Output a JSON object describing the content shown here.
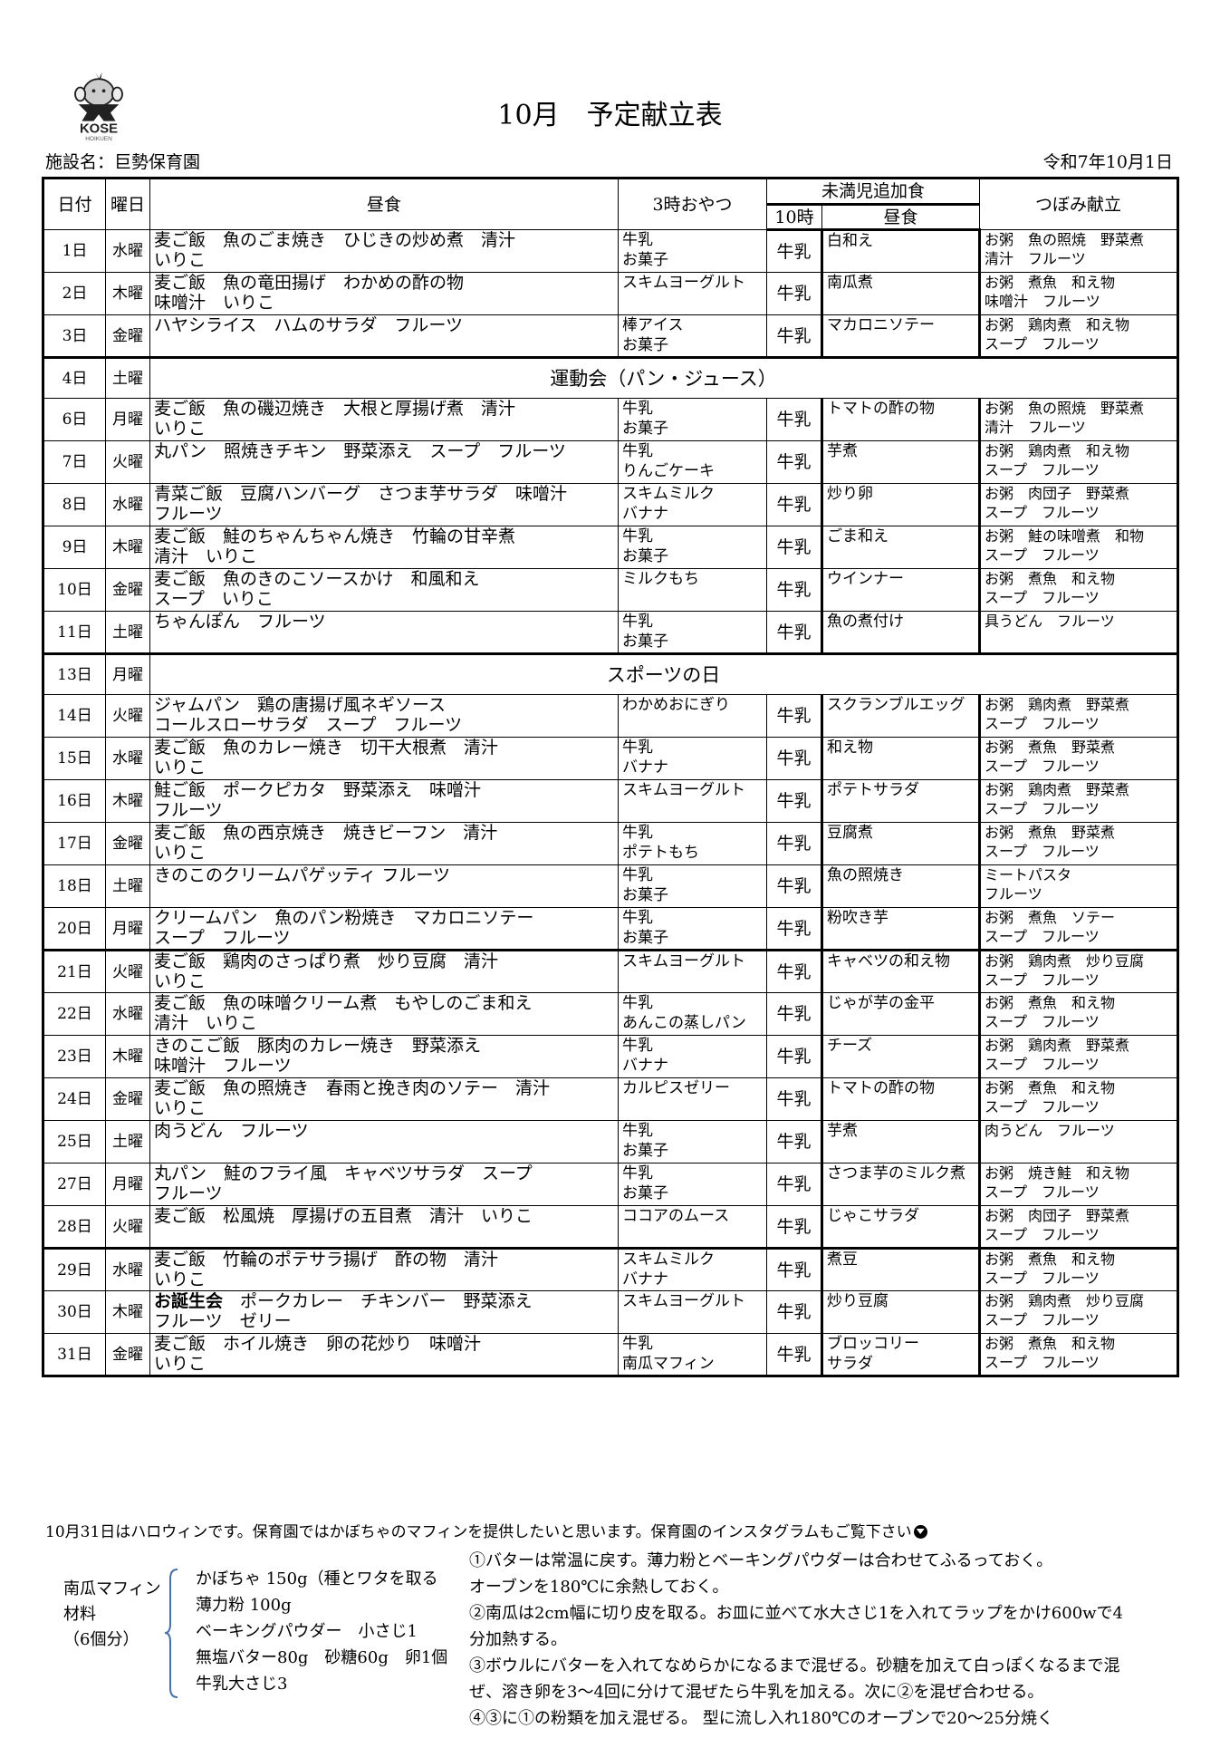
{
  "logo": {
    "text": "KOSE",
    "subtext": "HOIKUEN"
  },
  "title": "10月　予定献立表",
  "facility": "施設名：巨勢保育園",
  "issued_date": "令和7年10月1日",
  "headers": {
    "date": "日付",
    "weekday": "曜日",
    "lunch": "昼食",
    "snack": "3時おやつ",
    "extra": "未満児追加食",
    "ten": "10時",
    "extra_lunch": "昼食",
    "tsubomi": "つぼみ献立"
  },
  "rows": [
    {
      "day": "1日",
      "wd": "水曜",
      "lunch": "麦ご飯　魚のごま焼き　ひじきの炒め煮　清汁\nいりこ",
      "snack": "牛乳\nお菓子",
      "ten": "牛乳",
      "add": "白和え",
      "tsu": "お粥　魚の照焼　野菜煮\n清汁　フルーツ"
    },
    {
      "day": "2日",
      "wd": "木曜",
      "lunch": "麦ご飯　魚の竜田揚げ　わかめの酢の物\n味噌汁　いりこ",
      "snack": "スキムヨーグルト",
      "ten": "牛乳",
      "add": "南瓜煮",
      "tsu": "お粥　煮魚　和え物\n味噌汁　フルーツ"
    },
    {
      "day": "3日",
      "wd": "金曜",
      "lunch": "ハヤシライス　ハムのサラダ　フルーツ",
      "snack": "棒アイス\nお菓子",
      "ten": "牛乳",
      "add": "マカロニソテー",
      "tsu": "お粥　鶏肉煮　和え物\nスープ　フルーツ"
    },
    {
      "day": "4日",
      "wd": "土曜",
      "event": "運動会（パン・ジュース）"
    },
    {
      "day": "6日",
      "wd": "月曜",
      "lunch": "麦ご飯　魚の磯辺焼き　大根と厚揚げ煮　清汁\nいりこ",
      "snack": "牛乳\nお菓子",
      "ten": "牛乳",
      "add": "トマトの酢の物",
      "tsu": "お粥　魚の照焼　野菜煮\n清汁　フルーツ"
    },
    {
      "day": "7日",
      "wd": "火曜",
      "lunch": "丸パン　照焼きチキン　野菜添え　スープ　フルーツ",
      "snack": "牛乳\nりんごケーキ",
      "ten": "牛乳",
      "add": "芋煮",
      "tsu": "お粥　鶏肉煮　和え物\nスープ　フルーツ"
    },
    {
      "day": "8日",
      "wd": "水曜",
      "lunch": "青菜ご飯　豆腐ハンバーグ　さつま芋サラダ　味噌汁\nフルーツ",
      "snack": "スキムミルク\nバナナ",
      "ten": "牛乳",
      "add": "炒り卵",
      "tsu": "お粥　肉団子　野菜煮\nスープ　フルーツ"
    },
    {
      "day": "9日",
      "wd": "木曜",
      "lunch": "麦ご飯　鮭のちゃんちゃん焼き　竹輪の甘辛煮\n清汁　いりこ",
      "snack": "牛乳\nお菓子",
      "ten": "牛乳",
      "add": "ごま和え",
      "tsu": "お粥　鮭の味噌煮　和物\nスープ　フルーツ"
    },
    {
      "day": "10日",
      "wd": "金曜",
      "lunch": "麦ご飯　魚のきのこソースかけ　和風和え\nスープ　いりこ",
      "snack": "ミルクもち",
      "ten": "牛乳",
      "add": "ウインナー",
      "tsu": "お粥　煮魚　和え物\nスープ　フルーツ"
    },
    {
      "day": "11日",
      "wd": "土曜",
      "lunch": "ちゃんぽん　フルーツ",
      "snack": "牛乳\nお菓子",
      "ten": "牛乳",
      "add": "魚の煮付け",
      "tsu": "具うどん　フルーツ"
    },
    {
      "day": "13日",
      "wd": "月曜",
      "event": "スポーツの日"
    },
    {
      "day": "14日",
      "wd": "火曜",
      "lunch": "ジャムパン　鶏の唐揚げ風ネギソース\nコールスローサラダ　スープ　フルーツ",
      "snack": "わかめおにぎり",
      "ten": "牛乳",
      "add": "スクランブルエッグ",
      "tsu": "お粥　鶏肉煮　野菜煮\nスープ　フルーツ"
    },
    {
      "day": "15日",
      "wd": "水曜",
      "lunch": "麦ご飯　魚のカレー焼き　切干大根煮　清汁\nいりこ",
      "snack": "牛乳\nバナナ",
      "ten": "牛乳",
      "add": "和え物",
      "tsu": "お粥　煮魚　野菜煮\nスープ　フルーツ"
    },
    {
      "day": "16日",
      "wd": "木曜",
      "lunch": "鮭ご飯　ポークピカタ　野菜添え　味噌汁\nフルーツ",
      "snack": "スキムヨーグルト",
      "ten": "牛乳",
      "add": "ポテトサラダ",
      "tsu": "お粥　鶏肉煮　野菜煮\nスープ　フルーツ"
    },
    {
      "day": "17日",
      "wd": "金曜",
      "lunch": "麦ご飯　魚の西京焼き　焼きビーフン　清汁\nいりこ",
      "snack": "牛乳\nポテトもち",
      "ten": "牛乳",
      "add": "豆腐煮",
      "tsu": "お粥　煮魚　野菜煮\nスープ　フルーツ"
    },
    {
      "day": "18日",
      "wd": "土曜",
      "lunch": "きのこのクリームパゲッティ フルーツ",
      "snack": "牛乳\nお菓子",
      "ten": "牛乳",
      "add": "魚の照焼き",
      "tsu": "ミートパスタ\nフルーツ"
    },
    {
      "day": "20日",
      "wd": "月曜",
      "lunch": "クリームパン　魚のパン粉焼き　マカロニソテー\nスープ　フルーツ",
      "snack": "牛乳\nお菓子",
      "ten": "牛乳",
      "add": "粉吹き芋",
      "tsu": "お粥　煮魚　ソテー\nスープ　フルーツ"
    },
    {
      "day": "21日",
      "wd": "火曜",
      "lunch": "麦ご飯　鶏肉のさっぱり煮　炒り豆腐　清汁\nいりこ",
      "snack": "スキムヨーグルト",
      "ten": "牛乳",
      "add": "キャベツの和え物",
      "tsu": "お粥　鶏肉煮　炒り豆腐\nスープ　フルーツ"
    },
    {
      "day": "22日",
      "wd": "水曜",
      "lunch": "麦ご飯　魚の味噌クリーム煮　もやしのごま和え\n清汁　いりこ",
      "snack": "牛乳\nあんこの蒸しパン",
      "ten": "牛乳",
      "add": "じゃが芋の金平",
      "tsu": "お粥　煮魚　和え物\nスープ　フルーツ"
    },
    {
      "day": "23日",
      "wd": "木曜",
      "lunch": "きのこご飯　豚肉のカレー焼き　野菜添え\n味噌汁　フルーツ",
      "snack": "牛乳\nバナナ",
      "ten": "牛乳",
      "add": "チーズ",
      "tsu": "お粥　鶏肉煮　野菜煮\nスープ　フルーツ"
    },
    {
      "day": "24日",
      "wd": "金曜",
      "lunch": "麦ご飯　魚の照焼き　春雨と挽き肉のソテー　清汁\nいりこ",
      "snack": "カルピスゼリー",
      "ten": "牛乳",
      "add": "トマトの酢の物",
      "tsu": "お粥　煮魚　和え物\nスープ　フルーツ"
    },
    {
      "day": "25日",
      "wd": "土曜",
      "lunch": "肉うどん　フルーツ",
      "snack": "牛乳\nお菓子",
      "ten": "牛乳",
      "add": "芋煮",
      "tsu": "肉うどん　フルーツ"
    },
    {
      "day": "27日",
      "wd": "月曜",
      "lunch": "丸パン　鮭のフライ風　キャベツサラダ　スープ\nフルーツ",
      "snack": "牛乳\nお菓子",
      "ten": "牛乳",
      "add": "さつま芋のミルク煮",
      "tsu": "お粥　焼き鮭　和え物\nスープ　フルーツ"
    },
    {
      "day": "28日",
      "wd": "火曜",
      "lunch": "麦ご飯　松風焼　厚揚げの五目煮　清汁　いりこ",
      "snack": "ココアのムース",
      "ten": "牛乳",
      "add": "じゃこサラダ",
      "tsu": "お粥　肉団子　野菜煮\nスープ　フルーツ"
    },
    {
      "day": "29日",
      "wd": "水曜",
      "lunch": "麦ご飯　竹輪のポテサラ揚げ　酢の物　清汁\nいりこ",
      "snack": "スキムミルク\nバナナ",
      "ten": "牛乳",
      "add": "煮豆",
      "tsu": "お粥　煮魚　和え物\nスープ　フルーツ"
    },
    {
      "day": "30日",
      "wd": "木曜",
      "lunch_bold": "お誕生会",
      "lunch": "　ポークカレー　チキンバー　野菜添え\nフルーツ　ゼリー",
      "snack": "スキムヨーグルト",
      "ten": "牛乳",
      "add": "炒り豆腐",
      "tsu": "お粥　鶏肉煮　炒り豆腐\nスープ　フルーツ"
    },
    {
      "day": "31日",
      "wd": "金曜",
      "lunch": "麦ご飯　ホイル焼き　卵の花炒り　味噌汁\nいりこ",
      "snack": "牛乳\n南瓜マフィン",
      "ten": "牛乳",
      "add": "ブロッコリー\nサラダ",
      "tsu": "お粥　煮魚　和え物\nスープ　フルーツ"
    }
  ],
  "note": "10月31日はハロウィンです。保育園ではかぼちゃのマフィンを提供したいと思います。保育園のインスタグラムもご覧下さい",
  "note_icon": "jack-o-lantern-icon",
  "recipe": {
    "label": "南瓜マフィン\n材料\n（6個分）",
    "ingredients": [
      "かぼちゃ 150g（種とワタを取る",
      "薄力粉 100g",
      "ベーキングパウダー　小さじ1",
      "無塩バター80g　砂糖60g　卵1個",
      "牛乳大さじ3"
    ],
    "steps": [
      "①バターは常温に戻す。薄力粉とベーキングパウダーは合わせてふるっておく。",
      "オーブンを180℃に余熱しておく。",
      "②南瓜は2cm幅に切り皮を取る。お皿に並べて水大さじ1を入れてラップをかけ600wで4",
      "分加熱する。",
      "③ボウルにバターを入れてなめらかになるまで混ぜる。砂糖を加えて白っぽくなるまで混",
      "ぜ、溶き卵を3～4回に分けて混ぜたら牛乳を加える。次に②を混ぜ合わせる。",
      "④③に①の粉類を加え混ぜる。 型に流し入れ180℃のオーブンで20～25分焼く"
    ],
    "brace_color": "#4a6fa5"
  }
}
